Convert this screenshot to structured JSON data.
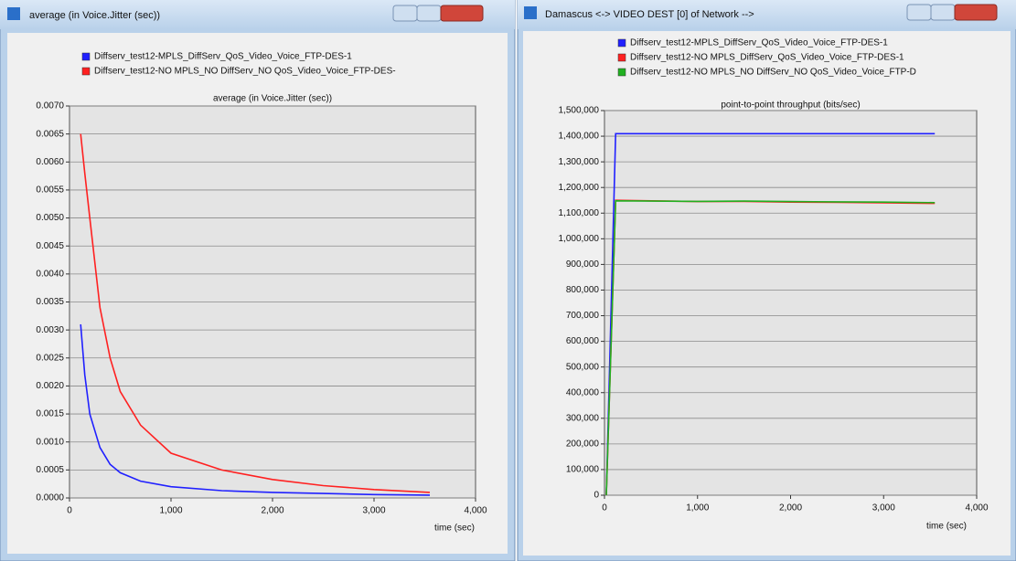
{
  "windows": [
    {
      "title": "average (in Voice.Jitter (sec))"
    },
    {
      "title": "Damascus <-> VIDEO DEST [0] of Network -->"
    }
  ],
  "chart_data": [
    {
      "type": "line",
      "title": "average (in Voice.Jitter (sec))",
      "x_label": "time (sec)",
      "x": [
        110,
        150,
        200,
        300,
        400,
        500,
        700,
        1000,
        1500,
        2000,
        2500,
        3000,
        3550
      ],
      "series": [
        {
          "name": "Diffserv_test12-MPLS_DiffServ_QoS_Video_Voice_FTP-DES-1",
          "color": "#2020ff",
          "values": [
            0.0031,
            0.0022,
            0.0015,
            0.0009,
            0.0006,
            0.00045,
            0.0003,
            0.0002,
            0.00013,
            0.0001,
            8e-05,
            6e-05,
            5e-05
          ]
        },
        {
          "name": "Diffserv_test12-NO MPLS_NO DiffServ_NO QoS_Video_Voice_FTP-DES-",
          "color": "#ff2020",
          "values": [
            0.0065,
            0.0058,
            0.005,
            0.0034,
            0.0025,
            0.0019,
            0.0013,
            0.0008,
            0.0005,
            0.00033,
            0.00022,
            0.00015,
            0.0001
          ]
        }
      ],
      "xlim": [
        0,
        4000
      ],
      "xticks": [
        0,
        {
          "value": 1000,
          "label": "1,000"
        },
        {
          "value": 2000,
          "label": "2,000"
        },
        {
          "value": 3000,
          "label": "3,000"
        },
        {
          "value": 4000,
          "label": "4,000"
        }
      ],
      "ylim": [
        0,
        0.007
      ],
      "yticks": [
        {
          "value": 0,
          "label": "0.0000"
        },
        {
          "value": 0.0005,
          "label": "0.0005"
        },
        {
          "value": 0.001,
          "label": "0.0010"
        },
        {
          "value": 0.0015,
          "label": "0.0015"
        },
        {
          "value": 0.002,
          "label": "0.0020"
        },
        {
          "value": 0.0025,
          "label": "0.0025"
        },
        {
          "value": 0.003,
          "label": "0.0030"
        },
        {
          "value": 0.0035,
          "label": "0.0035"
        },
        {
          "value": 0.004,
          "label": "0.0040"
        },
        {
          "value": 0.0045,
          "label": "0.0045"
        },
        {
          "value": 0.005,
          "label": "0.0050"
        },
        {
          "value": 0.0055,
          "label": "0.0055"
        },
        {
          "value": 0.006,
          "label": "0.0060"
        },
        {
          "value": 0.0065,
          "label": "0.0065"
        },
        {
          "value": 0.007,
          "label": "0.0070"
        }
      ],
      "grid": true
    },
    {
      "type": "line",
      "title": "point-to-point throughput (bits/sec)",
      "x_label": "time (sec)",
      "x": [
        20,
        120,
        500,
        1000,
        1500,
        2000,
        2500,
        3000,
        3550
      ],
      "series": [
        {
          "name": "Diffserv_test12-MPLS_DiffServ_QoS_Video_Voice_FTP-DES-1",
          "color": "#2020ff",
          "values": [
            0,
            1410000,
            1410000,
            1410000,
            1410000,
            1410000,
            1410000,
            1410000,
            1410000
          ]
        },
        {
          "name": "Diffserv_test12-NO MPLS_DiffServ_QoS_Video_Voice_FTP-DES-1",
          "color": "#ff2020",
          "values": [
            0,
            1150000,
            1148000,
            1145000,
            1146000,
            1143000,
            1142000,
            1140000,
            1138000
          ]
        },
        {
          "name": "Diffserv_test12-NO MPLS_NO DiffServ_NO QoS_Video_Voice_FTP-D",
          "color": "#20b020",
          "values": [
            0,
            1148000,
            1147000,
            1146000,
            1147000,
            1145000,
            1144000,
            1143000,
            1141000
          ]
        }
      ],
      "xlim": [
        0,
        4000
      ],
      "xticks": [
        0,
        {
          "value": 1000,
          "label": "1,000"
        },
        {
          "value": 2000,
          "label": "2,000"
        },
        {
          "value": 3000,
          "label": "3,000"
        },
        {
          "value": 4000,
          "label": "4,000"
        }
      ],
      "ylim": [
        0,
        1500000
      ],
      "yticks": [
        0,
        {
          "value": 100000,
          "label": "100,000"
        },
        {
          "value": 200000,
          "label": "200,000"
        },
        {
          "value": 300000,
          "label": "300,000"
        },
        {
          "value": 400000,
          "label": "400,000"
        },
        {
          "value": 500000,
          "label": "500,000"
        },
        {
          "value": 600000,
          "label": "600,000"
        },
        {
          "value": 700000,
          "label": "700,000"
        },
        {
          "value": 800000,
          "label": "800,000"
        },
        {
          "value": 900000,
          "label": "900,000"
        },
        {
          "value": 1000000,
          "label": "1,000,000"
        },
        {
          "value": 1100000,
          "label": "1,100,000"
        },
        {
          "value": 1200000,
          "label": "1,200,000"
        },
        {
          "value": 1300000,
          "label": "1,300,000"
        },
        {
          "value": 1400000,
          "label": "1,400,000"
        },
        {
          "value": 1500000,
          "label": "1,500,000"
        }
      ],
      "grid": true
    }
  ]
}
